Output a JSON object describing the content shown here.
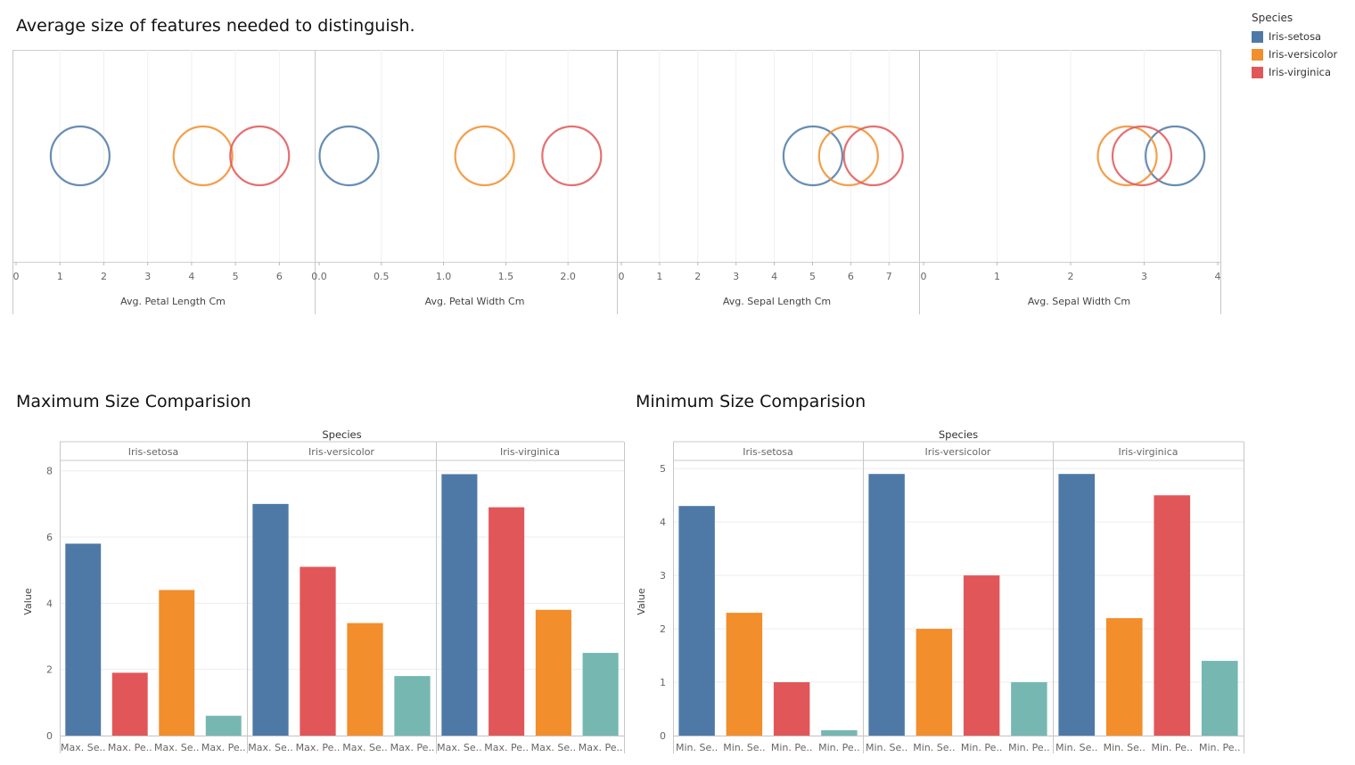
{
  "legend": {
    "title": "Species",
    "items": [
      {
        "label": "Iris-setosa",
        "color": "#4e79a7"
      },
      {
        "label": "Iris-versicolor",
        "color": "#f28e2b"
      },
      {
        "label": "Iris-virginica",
        "color": "#e15759"
      }
    ]
  },
  "chart_data": [
    {
      "type": "scatter",
      "title": "Average size of features needed to distinguish.",
      "panels": [
        {
          "xlabel": "Avg. Petal Length Cm",
          "xlim": [
            0,
            6.5
          ],
          "ticks": [
            0,
            1,
            2,
            3,
            4,
            5,
            6
          ],
          "tick_labels": [
            "0",
            "1",
            "2",
            "3",
            "4",
            "5",
            "6"
          ],
          "points": [
            {
              "series": "Iris-setosa",
              "value": 1.46
            },
            {
              "series": "Iris-versicolor",
              "value": 4.26
            },
            {
              "series": "Iris-virginica",
              "value": 5.55
            }
          ]
        },
        {
          "xlabel": "Avg. Petal Width Cm",
          "xlim": [
            0,
            2.35
          ],
          "ticks": [
            0,
            0.5,
            1,
            1.5,
            2
          ],
          "tick_labels": [
            "0.0",
            "0.5",
            "1.0",
            "1.5",
            "2.0"
          ],
          "points": [
            {
              "series": "Iris-setosa",
              "value": 0.24
            },
            {
              "series": "Iris-versicolor",
              "value": 1.33
            },
            {
              "series": "Iris-virginica",
              "value": 2.03
            }
          ]
        },
        {
          "xlabel": "Avg. Sepal Length Cm",
          "xlim": [
            0,
            7.6
          ],
          "ticks": [
            0,
            1,
            2,
            3,
            4,
            5,
            6,
            7
          ],
          "tick_labels": [
            "0",
            "1",
            "2",
            "3",
            "4",
            "5",
            "6",
            "7"
          ],
          "points": [
            {
              "series": "Iris-setosa",
              "value": 5.01
            },
            {
              "series": "Iris-versicolor",
              "value": 5.94
            },
            {
              "series": "Iris-virginica",
              "value": 6.59
            }
          ]
        },
        {
          "xlabel": "Avg. Sepal Width Cm",
          "xlim": [
            0,
            4.0
          ],
          "ticks": [
            0,
            1,
            2,
            3,
            4
          ],
          "tick_labels": [
            "0",
            "1",
            "2",
            "3",
            "4"
          ],
          "points": [
            {
              "series": "Iris-setosa",
              "value": 3.42
            },
            {
              "series": "Iris-versicolor",
              "value": 2.77
            },
            {
              "series": "Iris-virginica",
              "value": 2.97
            }
          ]
        }
      ]
    },
    {
      "type": "bar",
      "title": "Maximum Size Comparision",
      "header": "Species",
      "ylabel": "Value",
      "ylim": [
        0,
        8.1
      ],
      "yticks": [
        0,
        2,
        4,
        6,
        8
      ],
      "groups": [
        {
          "name": "Iris-setosa",
          "bars": [
            {
              "label": "Max. Se..",
              "value": 5.8,
              "color": "#4e79a7"
            },
            {
              "label": "Max. Pe..",
              "value": 1.9,
              "color": "#e15759"
            },
            {
              "label": "Max. Se..",
              "value": 4.4,
              "color": "#f28e2b"
            },
            {
              "label": "Max. Pe..",
              "value": 0.6,
              "color": "#76b7b2"
            }
          ]
        },
        {
          "name": "Iris-versicolor",
          "bars": [
            {
              "label": "Max. Se..",
              "value": 7.0,
              "color": "#4e79a7"
            },
            {
              "label": "Max. Pe..",
              "value": 5.1,
              "color": "#e15759"
            },
            {
              "label": "Max. Se..",
              "value": 3.4,
              "color": "#f28e2b"
            },
            {
              "label": "Max. Pe..",
              "value": 1.8,
              "color": "#76b7b2"
            }
          ]
        },
        {
          "name": "Iris-virginica",
          "bars": [
            {
              "label": "Max. Se..",
              "value": 7.9,
              "color": "#4e79a7"
            },
            {
              "label": "Max. Pe..",
              "value": 6.9,
              "color": "#e15759"
            },
            {
              "label": "Max. Se..",
              "value": 3.8,
              "color": "#f28e2b"
            },
            {
              "label": "Max. Pe..",
              "value": 2.5,
              "color": "#76b7b2"
            }
          ]
        }
      ]
    },
    {
      "type": "bar",
      "title": "Minimum Size Comparision",
      "header": "Species",
      "ylabel": "Value",
      "ylim": [
        0,
        5.0
      ],
      "yticks": [
        0,
        1,
        2,
        3,
        4,
        5
      ],
      "groups": [
        {
          "name": "Iris-setosa",
          "bars": [
            {
              "label": "Min. Se..",
              "value": 4.3,
              "color": "#4e79a7"
            },
            {
              "label": "Min. Se..",
              "value": 2.3,
              "color": "#f28e2b"
            },
            {
              "label": "Min. Pe..",
              "value": 1.0,
              "color": "#e15759"
            },
            {
              "label": "Min. Pe..",
              "value": 0.1,
              "color": "#76b7b2"
            }
          ]
        },
        {
          "name": "Iris-versicolor",
          "bars": [
            {
              "label": "Min. Se..",
              "value": 4.9,
              "color": "#4e79a7"
            },
            {
              "label": "Min. Se..",
              "value": 2.0,
              "color": "#f28e2b"
            },
            {
              "label": "Min. Pe..",
              "value": 3.0,
              "color": "#e15759"
            },
            {
              "label": "Min. Pe..",
              "value": 1.0,
              "color": "#76b7b2"
            }
          ]
        },
        {
          "name": "Iris-virginica",
          "bars": [
            {
              "label": "Min. Se..",
              "value": 4.9,
              "color": "#4e79a7"
            },
            {
              "label": "Min. Se..",
              "value": 2.2,
              "color": "#f28e2b"
            },
            {
              "label": "Min. Pe..",
              "value": 4.5,
              "color": "#e15759"
            },
            {
              "label": "Min. Pe..",
              "value": 1.4,
              "color": "#76b7b2"
            }
          ]
        }
      ]
    }
  ]
}
